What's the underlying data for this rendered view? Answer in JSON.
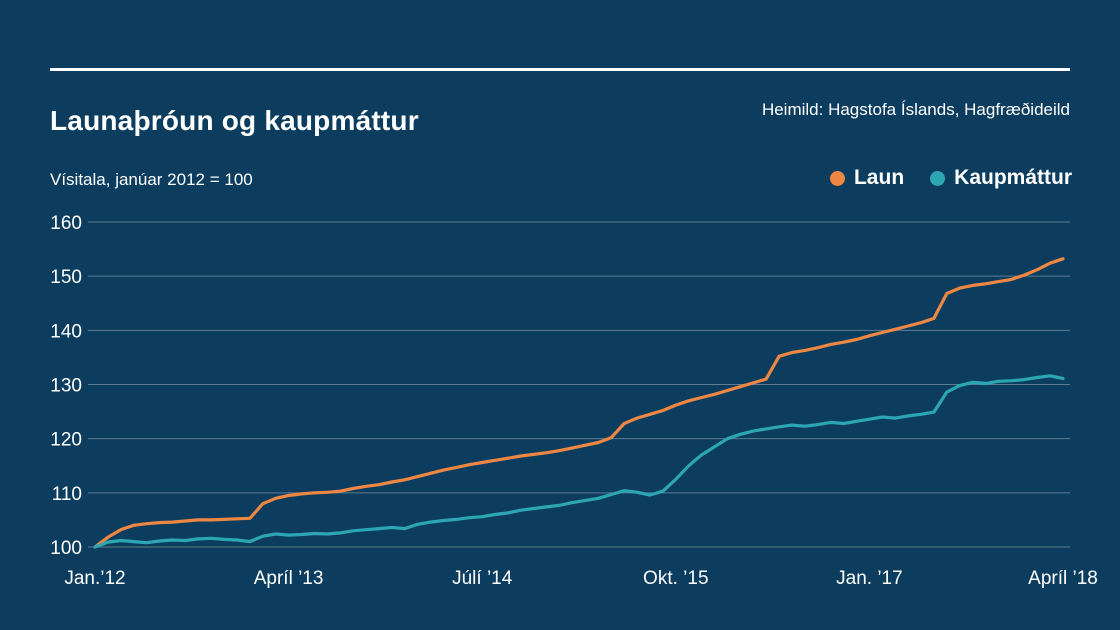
{
  "page": {
    "background": "#0d3d5e",
    "title": "Launaþróun og kaupmáttur",
    "source": "Heimild: Hagstofa Íslands, Hagfræðideild",
    "subtitle": "Vísitala, janúar 2012 = 100"
  },
  "legend": [
    {
      "label": "Laun",
      "color": "#ee8743"
    },
    {
      "label": "Kaupmáttur",
      "color": "#2ba6b2"
    }
  ],
  "chart_data": {
    "type": "line",
    "title": "Launaþróun og kaupmáttur",
    "subtitle": "Vísitala, janúar 2012 = 100",
    "x_unit": "monthly, January 2012 to April 2018",
    "ylim": [
      100,
      160
    ],
    "yticks": [
      100,
      110,
      120,
      130,
      140,
      150,
      160
    ],
    "grid": "horizontal only",
    "legend_position": "top-right",
    "xticks": [
      {
        "pos": 0,
        "label": "Jan.’12"
      },
      {
        "pos": 15,
        "label": "Apríl ’13"
      },
      {
        "pos": 30,
        "label": "Júlí ’14"
      },
      {
        "pos": 45,
        "label": "Okt. ’15"
      },
      {
        "pos": 60,
        "label": "Jan. ’17"
      },
      {
        "pos": 75,
        "label": "Apríl ’18"
      }
    ],
    "series": [
      {
        "name": "Laun",
        "color": "#ee8743",
        "values": [
          100,
          101.8,
          103.2,
          104.0,
          104.3,
          104.5,
          104.6,
          104.8,
          105.0,
          105.0,
          105.1,
          105.2,
          105.3,
          108.0,
          109.0,
          109.5,
          109.8,
          110.0,
          110.1,
          110.3,
          110.8,
          111.2,
          111.5,
          112.0,
          112.4,
          113.0,
          113.6,
          114.2,
          114.7,
          115.2,
          115.6,
          116.0,
          116.4,
          116.8,
          117.1,
          117.4,
          117.8,
          118.3,
          118.8,
          119.3,
          120.2,
          122.8,
          123.8,
          124.5,
          125.2,
          126.2,
          127.0,
          127.6,
          128.2,
          128.9,
          129.6,
          130.3,
          131.0,
          135.2,
          135.9,
          136.3,
          136.8,
          137.4,
          137.8,
          138.3,
          139.0,
          139.6,
          140.2,
          140.8,
          141.4,
          142.2,
          146.8,
          147.8,
          148.3,
          148.6,
          149.0,
          149.4,
          150.2,
          151.2,
          152.4,
          153.2
        ]
      },
      {
        "name": "Kaupmáttur",
        "color": "#2ba6b2",
        "values": [
          100,
          100.9,
          101.2,
          101.0,
          100.8,
          101.1,
          101.3,
          101.2,
          101.5,
          101.6,
          101.4,
          101.3,
          101.0,
          102.0,
          102.4,
          102.2,
          102.3,
          102.5,
          102.4,
          102.6,
          103.0,
          103.2,
          103.4,
          103.6,
          103.4,
          104.2,
          104.6,
          104.9,
          105.1,
          105.4,
          105.6,
          106.0,
          106.3,
          106.8,
          107.1,
          107.4,
          107.7,
          108.2,
          108.6,
          109.0,
          109.7,
          110.4,
          110.1,
          109.6,
          110.3,
          112.5,
          115.0,
          117.0,
          118.5,
          120.0,
          120.8,
          121.4,
          121.8,
          122.2,
          122.5,
          122.3,
          122.6,
          123.0,
          122.8,
          123.2,
          123.6,
          124.0,
          123.8,
          124.2,
          124.5,
          124.9,
          128.6,
          129.8,
          130.4,
          130.2,
          130.6,
          130.7,
          130.9,
          131.3,
          131.6,
          131.1
        ]
      }
    ]
  }
}
